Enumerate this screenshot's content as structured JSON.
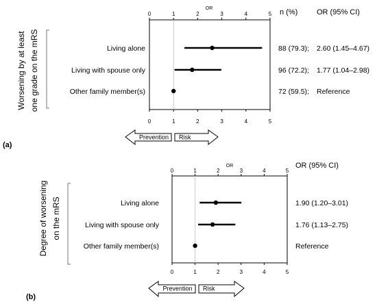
{
  "chart_data": [
    {
      "type": "forest",
      "panel_label": "(a)",
      "axis_title": "OR",
      "ylabel_lines": [
        "Worsening by at least",
        "one grade on the mRS"
      ],
      "xlim": [
        0,
        5
      ],
      "ticks": [
        "0",
        "1",
        "2",
        "3",
        "4",
        "5"
      ],
      "reference_value": 1,
      "column_headers": [
        "n (%)",
        "OR (95% CI)"
      ],
      "rows": [
        {
          "label": "Living alone",
          "or": 2.6,
          "ci_low": 1.45,
          "ci_high": 4.67,
          "n_pct": "88 (79.3);",
          "or_text": "2.60 (1.45–4.67)"
        },
        {
          "label": "Living with spouse only",
          "or": 1.77,
          "ci_low": 1.04,
          "ci_high": 2.98,
          "n_pct": "96 (72.2);",
          "or_text": "1.77 (1.04–2.98)"
        },
        {
          "label": "Other family member(s)",
          "or": 1.0,
          "ci_low": null,
          "ci_high": null,
          "n_pct": "72 (59.5);",
          "or_text": "Reference"
        }
      ],
      "arrows": {
        "left": "Prevention",
        "right": "Risk"
      }
    },
    {
      "type": "forest",
      "panel_label": "(b)",
      "axis_title": "OR",
      "ylabel_lines": [
        "Degree of worsening",
        "on the mRS"
      ],
      "xlim": [
        0,
        5
      ],
      "ticks": [
        "0",
        "1",
        "2",
        "3",
        "4",
        "5"
      ],
      "reference_value": 1,
      "column_headers": [
        "OR (95% CI)"
      ],
      "rows": [
        {
          "label": "Living alone",
          "or": 1.9,
          "ci_low": 1.2,
          "ci_high": 3.01,
          "or_text": "1.90 (1.20–3.01)"
        },
        {
          "label": "Living with spouse only",
          "or": 1.76,
          "ci_low": 1.13,
          "ci_high": 2.75,
          "or_text": "1.76 (1.13–2.75)"
        },
        {
          "label": "Other family member(s)",
          "or": 1.0,
          "ci_low": null,
          "ci_high": null,
          "or_text": "Reference"
        }
      ],
      "arrows": {
        "left": "Prevention",
        "right": "Risk"
      }
    }
  ]
}
